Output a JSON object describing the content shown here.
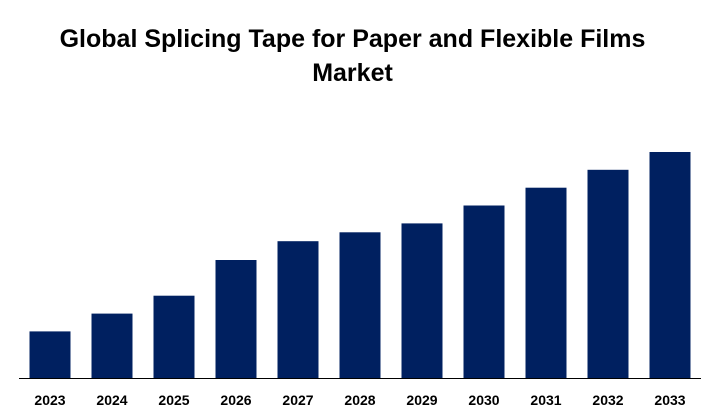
{
  "chart_data": {
    "type": "bar",
    "title": "Global Splicing Tape for Paper and Flexible Films Market",
    "categories": [
      "2023",
      "2024",
      "2025",
      "2026",
      "2027",
      "2028",
      "2029",
      "2030",
      "2031",
      "2032",
      "2033"
    ],
    "values": [
      47,
      65,
      83,
      119,
      138,
      147,
      156,
      174,
      192,
      210,
      228
    ],
    "xlabel": "",
    "ylabel": "",
    "ylim": [
      0,
      230
    ],
    "grid": false,
    "legend": "none",
    "colors": {
      "bar": "#002060",
      "axis": "#000000",
      "text": "#000000"
    }
  }
}
